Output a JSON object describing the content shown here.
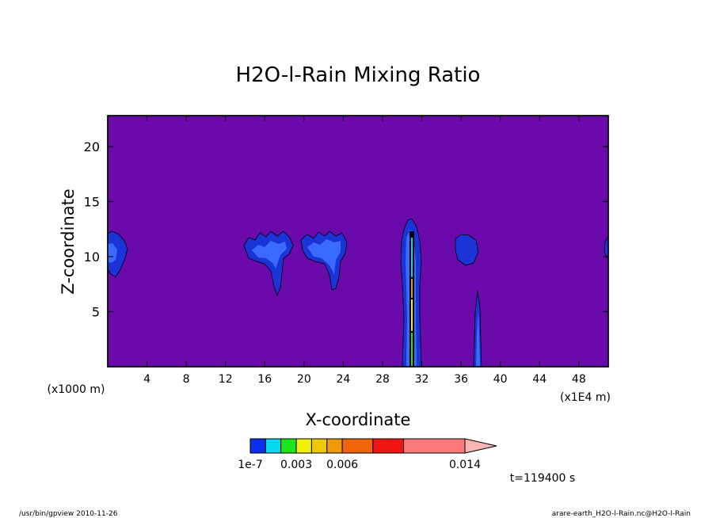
{
  "chart_data": {
    "type": "heatmap",
    "title": "H2O-l-Rain Mixing Ratio",
    "xlabel": "X-coordinate",
    "ylabel": "Z-coordinate",
    "x_unit": "(x1000 m)",
    "y_unit": "(x1E4 m)",
    "x_ticks": [
      4,
      8,
      12,
      16,
      20,
      24,
      28,
      32,
      36,
      40,
      44,
      48
    ],
    "y_ticks": [
      5,
      10,
      15,
      20
    ],
    "xlim": [
      0,
      51
    ],
    "ylim": [
      0,
      22.8
    ],
    "background_color": "#6a0aab",
    "colorbar": {
      "labels": [
        "1e-7",
        "0.003",
        "0.006",
        "0.014"
      ],
      "levels": [
        1e-07,
        0.001,
        0.002,
        0.003,
        0.004,
        0.005,
        0.006,
        0.008,
        0.01,
        0.014
      ],
      "colors": [
        "#0c2ff0",
        "#00d8f0",
        "#1ee61e",
        "#f0f00a",
        "#f0c80a",
        "#f09a0a",
        "#f0640a",
        "#f01414",
        "#fa7a7a",
        "#fab4b4"
      ]
    },
    "time_label": "t=119400 s"
  },
  "footer": {
    "left": "/usr/bin/gpview  2010-11-26",
    "right": "arare-earth_H2O-l-Rain.nc@H2O-l-Rain"
  }
}
